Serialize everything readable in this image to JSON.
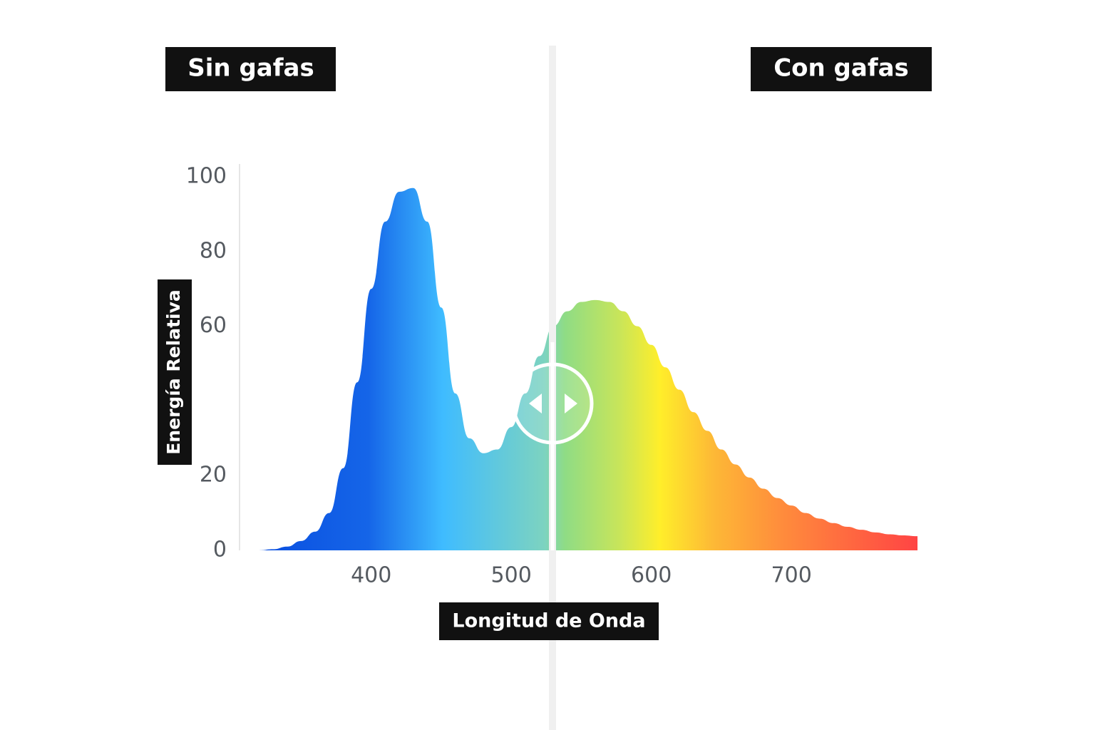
{
  "chart_data": {
    "type": "area",
    "label_left": "Sin gafas",
    "label_right": "Con gafas",
    "xlabel": "Longitud de Onda",
    "ylabel": "Energía Relativa",
    "x": [
      320,
      330,
      340,
      350,
      360,
      370,
      380,
      390,
      400,
      410,
      420,
      430,
      440,
      450,
      460,
      470,
      480,
      490,
      500,
      510,
      520,
      530,
      540,
      550,
      560,
      570,
      580,
      590,
      600,
      610,
      620,
      630,
      640,
      650,
      660,
      670,
      680,
      690,
      700,
      710,
      720,
      730,
      740,
      750,
      760,
      770,
      780,
      790
    ],
    "values": [
      0,
      0.3,
      1,
      2.5,
      5,
      10,
      22,
      45,
      70,
      88,
      96,
      97,
      88,
      65,
      42,
      30,
      26,
      27,
      33,
      42,
      52,
      60,
      64,
      66.5,
      67,
      66.5,
      64,
      60,
      55,
      49,
      43,
      37,
      32,
      27,
      23,
      19.5,
      16.5,
      14,
      12,
      10,
      8.5,
      7.3,
      6.3,
      5.5,
      4.8,
      4.3,
      4,
      3.8
    ],
    "xlim": [
      306,
      790
    ],
    "ylim": [
      0,
      100
    ],
    "xticks": [
      400,
      500,
      600,
      700
    ],
    "yticks": [
      0,
      20,
      60,
      80,
      100
    ],
    "gradient": [
      "#0a4fe0",
      "#1565e8",
      "#3fbcff",
      "#7dd3c0",
      "#8fdc85",
      "#c8e55a",
      "#ffee2a",
      "#fdb836",
      "#ff8c3c",
      "#ff4444"
    ]
  }
}
